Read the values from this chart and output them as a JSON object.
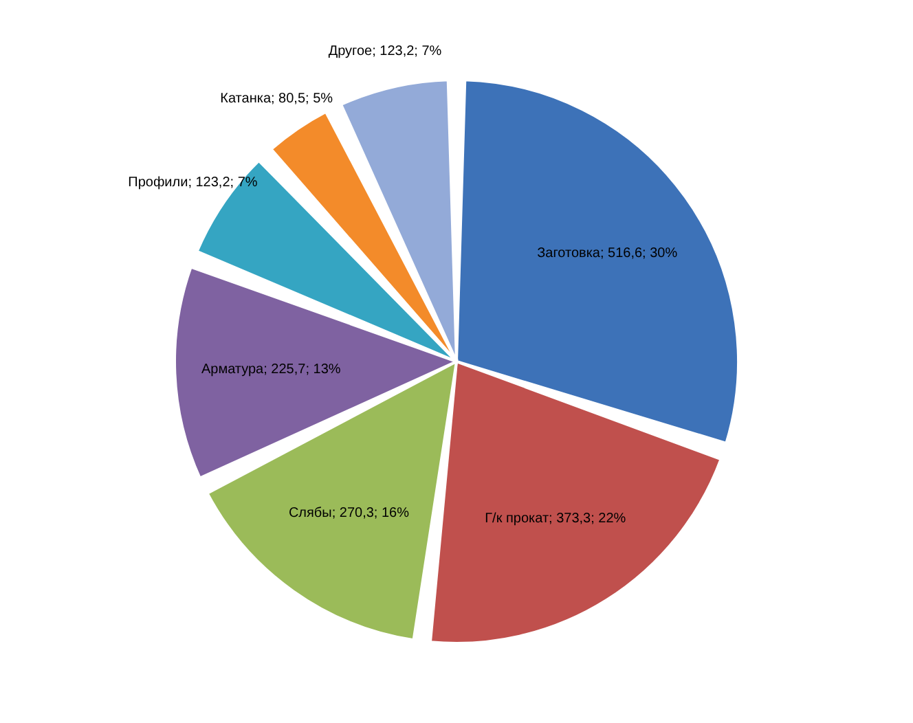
{
  "chart_data": {
    "type": "pie",
    "categories": [
      "Заготовка",
      "Г/к прокат",
      "Слябы",
      "Арматура",
      "Профили",
      "Катанка",
      "Другое"
    ],
    "values": [
      516.6,
      373.3,
      270.3,
      225.7,
      123.2,
      80.5,
      123.2
    ],
    "value_labels": [
      "516,6; 30%",
      "373,3; 22%",
      "270,3; 16%",
      "225,7; 13%",
      "123,2; 7%",
      "80,5; 5%",
      "123,2; 7%"
    ],
    "colors": [
      "#3d72b8",
      "#c0504d",
      "#9bbb59",
      "#7f62a1",
      "#35a5c2",
      "#f38b2a",
      "#93aad8"
    ],
    "legend": false
  }
}
